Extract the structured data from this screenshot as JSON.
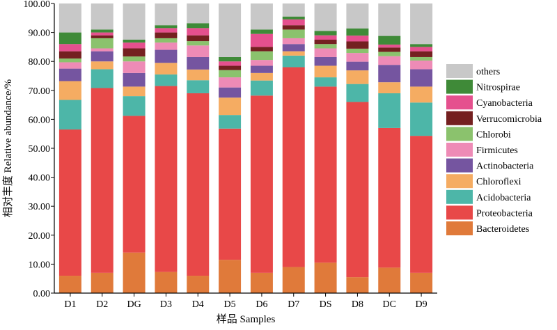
{
  "chart_data": {
    "type": "bar",
    "stacked": true,
    "xlabel": "样品 Samples",
    "ylabel": "相对丰度 Relative abundance/%",
    "ylim": [
      0,
      100
    ],
    "yticks": [
      "0.00",
      "10.00",
      "20.00",
      "30.00",
      "40.00",
      "50.00",
      "60.00",
      "70.00",
      "80.00",
      "90.00",
      "100.00"
    ],
    "categories": [
      "D1",
      "D2",
      "DG",
      "D3",
      "D4",
      "D5",
      "D6",
      "D7",
      "DS",
      "D8",
      "DC",
      "D9"
    ],
    "legend_position": "right",
    "series": [
      {
        "name": "Bacteroidetes",
        "color": "#E07A3A",
        "values": [
          6.0,
          7.0,
          14.0,
          7.3,
          6.0,
          11.5,
          7.0,
          9.0,
          10.5,
          5.5,
          8.8,
          7.0
        ]
      },
      {
        "name": "Proteobacteria",
        "color": "#E84848",
        "values": [
          50.5,
          63.8,
          47.2,
          64.2,
          63.0,
          45.3,
          61.2,
          69.0,
          60.8,
          60.5,
          48.2,
          47.3
        ]
      },
      {
        "name": "Acidobacteria",
        "color": "#4DB6A8",
        "values": [
          10.2,
          6.5,
          6.8,
          4.0,
          4.5,
          4.7,
          5.2,
          4.0,
          3.2,
          6.2,
          12.0,
          11.5
        ]
      },
      {
        "name": "Chloroflexi",
        "color": "#F5AC62",
        "values": [
          6.5,
          2.7,
          3.3,
          4.0,
          3.7,
          6.0,
          2.6,
          1.5,
          4.0,
          4.7,
          3.8,
          5.5
        ]
      },
      {
        "name": "Actinobacteria",
        "color": "#7555A0",
        "values": [
          4.3,
          3.5,
          4.7,
          4.5,
          4.3,
          3.5,
          2.5,
          2.5,
          3.0,
          3.0,
          6.0,
          6.0
        ]
      },
      {
        "name": "Firmicutes",
        "color": "#EE8BB6",
        "values": [
          2.2,
          1.0,
          4.0,
          2.5,
          4.0,
          3.5,
          2.0,
          2.0,
          3.0,
          3.0,
          3.0,
          3.0
        ]
      },
      {
        "name": "Chlorobi",
        "color": "#8BC26D",
        "values": [
          1.3,
          3.5,
          1.7,
          1.5,
          1.5,
          2.5,
          3.0,
          3.0,
          1.5,
          1.5,
          1.5,
          1.2
        ]
      },
      {
        "name": "Verrucomicrobia",
        "color": "#742020",
        "values": [
          2.5,
          1.0,
          2.8,
          2.0,
          2.0,
          1.5,
          1.5,
          1.5,
          1.5,
          2.5,
          1.5,
          2.0
        ]
      },
      {
        "name": "Cyanobacteria",
        "color": "#E5508E",
        "values": [
          2.5,
          1.0,
          2.0,
          1.5,
          2.5,
          1.5,
          4.5,
          2.0,
          1.5,
          2.0,
          1.0,
          1.5
        ]
      },
      {
        "name": "Nitrospirae",
        "color": "#3F8A38",
        "values": [
          4.0,
          1.0,
          1.0,
          1.0,
          1.7,
          1.5,
          1.5,
          1.0,
          1.5,
          2.5,
          3.0,
          1.0
        ]
      },
      {
        "name": "others",
        "color": "#C8C8C8",
        "values": [
          10.0,
          9.0,
          12.5,
          7.5,
          6.8,
          18.5,
          9.0,
          4.5,
          9.5,
          8.6,
          11.2,
          14.0
        ]
      }
    ]
  }
}
